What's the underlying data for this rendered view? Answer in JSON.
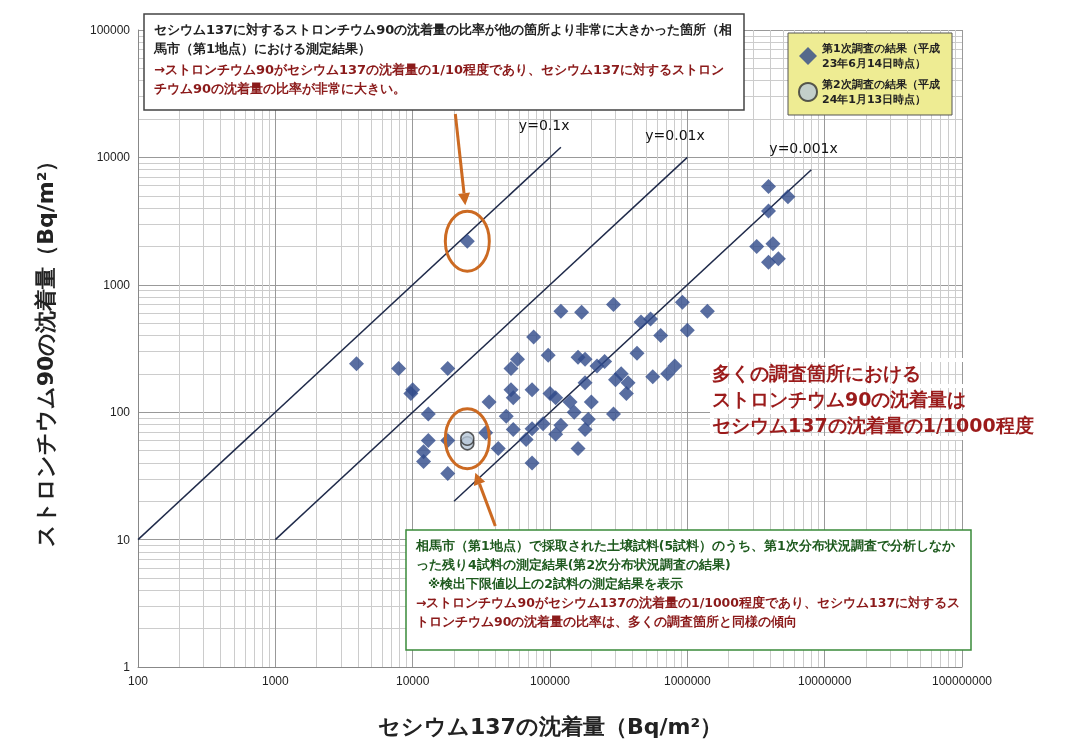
{
  "chart_data": {
    "type": "scatter",
    "xlabel": "セシウム137の沈着量（Bq/m²）",
    "ylabel": "ストロンチウム90の沈着量（Bq/m²）",
    "xlim": [
      100,
      100000000
    ],
    "xticks": [
      100,
      1000,
      10000,
      100000,
      1000000,
      10000000,
      100000000
    ],
    "ylim": [
      1,
      100000
    ],
    "yticks": [
      1,
      10,
      100,
      1000,
      10000,
      100000
    ],
    "log": "xy",
    "grid": true,
    "legend": "top right",
    "series": [
      {
        "name": "第1次調査の結果（平成23年6月14日時点）",
        "color": "#2f4a8a",
        "marker": "diamond",
        "x": [
          25000,
          3900,
          7900,
          18000,
          10000,
          9700,
          13000,
          13000,
          18000,
          12000,
          12000,
          18000,
          36000,
          34000,
          48000,
          42000,
          54000,
          52000,
          54000,
          58000,
          52000,
          76000,
          74000,
          74000,
          67000,
          74000,
          97000,
          120000,
          170000,
          100000,
          110000,
          89000,
          110000,
          120000,
          140000,
          150000,
          160000,
          180000,
          220000,
          250000,
          180000,
          200000,
          190000,
          180000,
          160000,
          290000,
          290000,
          300000,
          330000,
          370000,
          360000,
          430000,
          460000,
          540000,
          640000,
          560000,
          720000,
          810000,
          920000,
          1000000,
          1400000,
          3900000,
          5400000,
          3900000,
          4200000,
          3200000,
          4600000,
          3900000
        ],
        "values": [
          2200,
          240,
          220,
          220,
          150,
          140,
          97,
          60,
          60,
          49,
          41,
          33,
          120,
          69,
          93,
          52,
          73,
          150,
          130,
          260,
          220,
          390,
          150,
          74,
          61,
          40,
          280,
          620,
          610,
          140,
          130,
          81,
          67,
          79,
          120,
          100,
          270,
          260,
          230,
          250,
          170,
          120,
          88,
          73,
          52,
          700,
          97,
          180,
          200,
          170,
          140,
          290,
          510,
          540,
          400,
          190,
          200,
          230,
          730,
          440,
          620,
          5900,
          4900,
          3800,
          2100,
          2000,
          1600,
          1500
        ]
      },
      {
        "name": "第2次調査の結果（平成24年1月13日時点）",
        "color": "#b8c8d8",
        "marker": "circle",
        "x": [
          25000,
          25000
        ],
        "values": [
          57,
          62
        ]
      },
      {
        "name": "y=0.1x",
        "type": "line",
        "color": "#1f2a4a",
        "marker": "none",
        "x": [
          100,
          120000
        ],
        "values": [
          10,
          12000
        ]
      },
      {
        "name": "y=0.01x",
        "type": "line",
        "color": "#1f2a4a",
        "marker": "none",
        "x": [
          1000,
          1000000
        ],
        "values": [
          10,
          10000
        ]
      },
      {
        "name": "y=0.001x",
        "type": "line",
        "color": "#1f2a4a",
        "marker": "none",
        "x": [
          20000,
          8000000
        ],
        "values": [
          20,
          8000
        ]
      }
    ],
    "annotations": [
      "セシウム137に対するストロンチウム90の沈着量の比率が他の箇所より非常に大きかった箇所（相馬市（第1地点）における測定結果）",
      "→ストロンチウム90がセシウム137の沈着量の1/10程度であり、セシウム137に対するストロンチウム90の沈着量の比率が非常に大きい。",
      "相馬市（第1地点）で採取された土壌試料(5試料）のうち、第1次分布状況調査で分析しなかった残り4試料の測定結果(第2次分布状況調査の結果)",
      "※検出下限値以上の2試料の測定結果を表示",
      "→ストロンチウム90がセシウム137の沈着量の1/1000程度であり、セシウム137に対するストロンチウム90の沈着量の比率は、多くの調査箇所と同様の傾向",
      "多くの調査箇所における",
      "ストロンチウム90の沈着量は",
      "セシウム137の沈着量の1/1000程度"
    ]
  }
}
